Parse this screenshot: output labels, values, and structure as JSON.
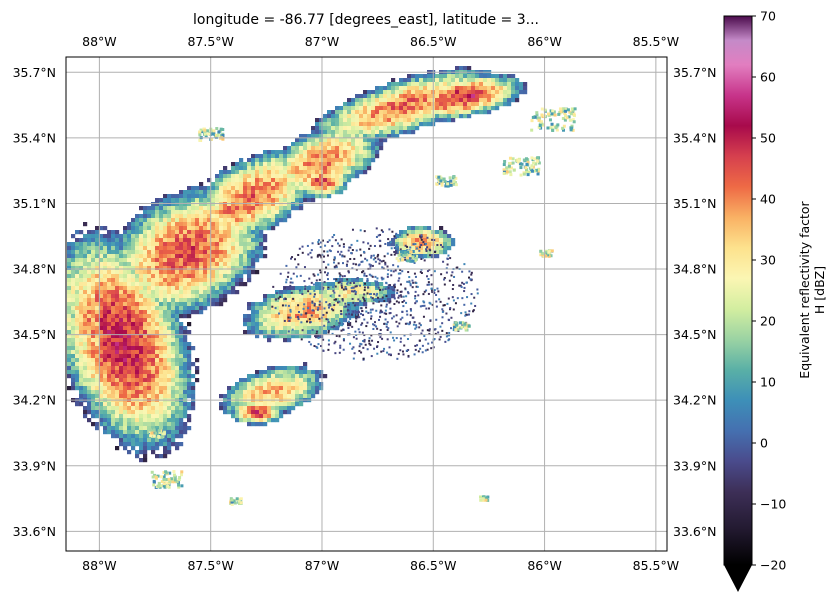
{
  "title": "longitude = -86.77 [degrees_east], latitude = 3...",
  "map": {
    "lon_range": [
      -88.15,
      -85.45
    ],
    "lat_range": [
      33.51,
      35.77
    ],
    "lon_ticks": [
      {
        "value": -88.0,
        "label": "88°W"
      },
      {
        "value": -87.5,
        "label": "87.5°W"
      },
      {
        "value": -87.0,
        "label": "87°W"
      },
      {
        "value": -86.5,
        "label": "86.5°W"
      },
      {
        "value": -86.0,
        "label": "86°W"
      },
      {
        "value": -85.5,
        "label": "85.5°W"
      }
    ],
    "lat_ticks": [
      {
        "value": 35.7,
        "label": "35.7°N"
      },
      {
        "value": 35.4,
        "label": "35.4°N"
      },
      {
        "value": 35.1,
        "label": "35.1°N"
      },
      {
        "value": 34.8,
        "label": "34.8°N"
      },
      {
        "value": 34.5,
        "label": "34.5°N"
      },
      {
        "value": 34.2,
        "label": "34.2°N"
      },
      {
        "value": 33.9,
        "label": "33.9°N"
      },
      {
        "value": 33.6,
        "label": "33.6°N"
      }
    ],
    "gridlines": true,
    "radar_site": {
      "lon": -86.77
    }
  },
  "colorbar": {
    "label_line1": "Equivalent reflectivity factor",
    "label_line2": "H [dBZ]",
    "min": -20,
    "max": 70,
    "extend": "min",
    "colormap": "Spectral_r",
    "ticks": [
      {
        "value": 70,
        "label": "70"
      },
      {
        "value": 60,
        "label": "60"
      },
      {
        "value": 50,
        "label": "50"
      },
      {
        "value": 40,
        "label": "40"
      },
      {
        "value": 30,
        "label": "30"
      },
      {
        "value": 20,
        "label": "20"
      },
      {
        "value": 10,
        "label": "10"
      },
      {
        "value": 0,
        "label": "0"
      },
      {
        "value": -10,
        "label": "−10"
      },
      {
        "value": -20,
        "label": "−20"
      }
    ],
    "stops": [
      {
        "value": -20,
        "color": "#000000"
      },
      {
        "value": -14,
        "color": "#231a31"
      },
      {
        "value": -8,
        "color": "#3d2f57"
      },
      {
        "value": -3,
        "color": "#4a4b8c"
      },
      {
        "value": 2,
        "color": "#4570b0"
      },
      {
        "value": 7,
        "color": "#3d8fb8"
      },
      {
        "value": 12,
        "color": "#5ab0a6"
      },
      {
        "value": 17,
        "color": "#9bd3a3"
      },
      {
        "value": 22,
        "color": "#d3eea0"
      },
      {
        "value": 27,
        "color": "#fbf6b3"
      },
      {
        "value": 32,
        "color": "#fde28d"
      },
      {
        "value": 37,
        "color": "#f9b164"
      },
      {
        "value": 42,
        "color": "#ee6a45"
      },
      {
        "value": 47,
        "color": "#d6404e"
      },
      {
        "value": 52,
        "color": "#a80a4b"
      },
      {
        "value": 57,
        "color": "#c7348a"
      },
      {
        "value": 62,
        "color": "#e27ec0"
      },
      {
        "value": 66,
        "color": "#c48ac8"
      },
      {
        "value": 70,
        "color": "#4b0b4c"
      }
    ]
  }
}
